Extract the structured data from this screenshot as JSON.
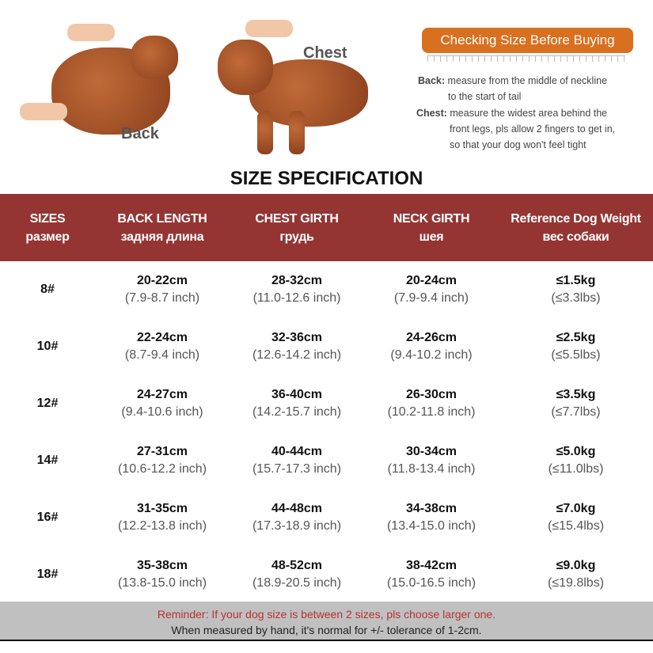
{
  "illustration": {
    "back_label": "Back",
    "chest_label": "Chest"
  },
  "guide": {
    "banner": "Checking Size Before Buying",
    "back_term": "Back:",
    "back_text_1": "measure from the middle of neckline",
    "back_text_2": "to the start of tail",
    "chest_term": "Chest:",
    "chest_text_1": "measure the widest area behind the",
    "chest_text_2": "front legs, pls allow 2 fingers to get in,",
    "chest_text_3": "so that your dog won't feel tight"
  },
  "title": "SIZE SPECIFICATION",
  "colors": {
    "header": "#943534",
    "banner": "#d9701f",
    "footer": "#c0c0c0",
    "reminder": "#b83232"
  },
  "table": {
    "headers": [
      {
        "en": "SIZES",
        "ru": "размер"
      },
      {
        "en": "BACK LENGTH",
        "ru": "задняя длина"
      },
      {
        "en": "CHEST GIRTH",
        "ru": "грудь"
      },
      {
        "en": "NECK GIRTH",
        "ru": "шея"
      },
      {
        "en": "Reference Dog Weight",
        "ru": "вес собаки"
      }
    ],
    "rows": [
      {
        "size": "8#",
        "back": [
          "20-22cm",
          "(7.9-8.7 inch)"
        ],
        "chest": [
          "28-32cm",
          "(11.0-12.6 inch)"
        ],
        "neck": [
          "20-24cm",
          "(7.9-9.4 inch)"
        ],
        "weight": [
          "≤1.5kg",
          "(≤3.3lbs)"
        ]
      },
      {
        "size": "10#",
        "back": [
          "22-24cm",
          "(8.7-9.4 inch)"
        ],
        "chest": [
          "32-36cm",
          "(12.6-14.2 inch)"
        ],
        "neck": [
          "24-26cm",
          "(9.4-10.2 inch)"
        ],
        "weight": [
          "≤2.5kg",
          "(≤5.5lbs)"
        ]
      },
      {
        "size": "12#",
        "back": [
          "24-27cm",
          "(9.4-10.6 inch)"
        ],
        "chest": [
          "36-40cm",
          "(14.2-15.7 inch)"
        ],
        "neck": [
          "26-30cm",
          "(10.2-11.8 inch)"
        ],
        "weight": [
          "≤3.5kg",
          "(≤7.7lbs)"
        ]
      },
      {
        "size": "14#",
        "back": [
          "27-31cm",
          "(10.6-12.2 inch)"
        ],
        "chest": [
          "40-44cm",
          "(15.7-17.3 inch)"
        ],
        "neck": [
          "30-34cm",
          "(11.8-13.4 inch)"
        ],
        "weight": [
          "≤5.0kg",
          "(≤11.0lbs)"
        ]
      },
      {
        "size": "16#",
        "back": [
          "31-35cm",
          "(12.2-13.8 inch)"
        ],
        "chest": [
          "44-48cm",
          "(17.3-18.9 inch)"
        ],
        "neck": [
          "34-38cm",
          "(13.4-15.0 inch)"
        ],
        "weight": [
          "≤7.0kg",
          "(≤15.4lbs)"
        ]
      },
      {
        "size": "18#",
        "back": [
          "35-38cm",
          "(13.8-15.0 inch)"
        ],
        "chest": [
          "48-52cm",
          "(18.9-20.5 inch)"
        ],
        "neck": [
          "38-42cm",
          "(15.0-16.5 inch)"
        ],
        "weight": [
          "≤9.0kg",
          "(≤19.8lbs)"
        ]
      }
    ]
  },
  "footer": {
    "reminder": "Reminder: If your dog size is between 2 sizes, pls choose larger one.",
    "tolerance": "When measured by hand, it's normal for +/- tolerance of 1-2cm."
  }
}
